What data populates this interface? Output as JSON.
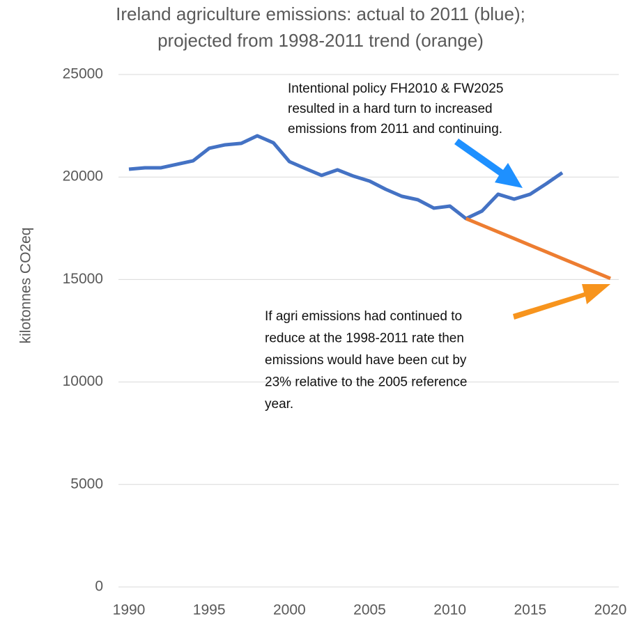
{
  "chart_data": {
    "type": "line",
    "title": [
      "Ireland agriculture emissions: actual to 2011 (blue);",
      "projected from 1998-2011 trend (orange)"
    ],
    "y_label": "kilotonnes CO2eq",
    "x": [
      1990,
      1991,
      1992,
      1993,
      1994,
      1995,
      1996,
      1997,
      1998,
      1999,
      2000,
      2001,
      2002,
      2003,
      2004,
      2005,
      2006,
      2007,
      2008,
      2009,
      2010,
      2011,
      2012,
      2013,
      2014,
      2015,
      2016,
      2017,
      2018,
      2019,
      2020
    ],
    "series": [
      {
        "name": "actual",
        "color": "#4472c4",
        "values": [
          20380,
          20450,
          20450,
          20620,
          20790,
          21400,
          21570,
          21640,
          22010,
          21670,
          20750,
          20410,
          20080,
          20350,
          20040,
          19800,
          19400,
          19060,
          18890,
          18480,
          18580,
          17970,
          18340,
          19160,
          18920,
          19160,
          19670,
          20210,
          null,
          null,
          null
        ]
      },
      {
        "name": "projected",
        "color": "#ed7d31",
        "values": [
          null,
          null,
          null,
          null,
          null,
          null,
          null,
          null,
          null,
          null,
          null,
          null,
          null,
          null,
          null,
          null,
          null,
          null,
          null,
          null,
          null,
          17970,
          17646,
          17321,
          16997,
          16672,
          16348,
          16023,
          15699,
          15374,
          15050
        ]
      }
    ],
    "xlim": [
      1990,
      2020
    ],
    "xticks": [
      1990,
      1995,
      2000,
      2005,
      2010,
      2015,
      2020
    ],
    "ylim": [
      0,
      25000
    ],
    "yticks": [
      0,
      5000,
      10000,
      15000,
      20000,
      25000
    ],
    "grid": true,
    "annotations": [
      {
        "lines": [
          "Intentional policy FH2010 & FW2025",
          "resulted in a hard turn to increased",
          "emissions from 2011 and continuing."
        ]
      },
      {
        "lines": [
          "If agri emissions had continued to",
          "reduce at the 1998-2011 rate then",
          "emissions would have been cut by",
          "23% relative to the 2005 reference",
          "year."
        ]
      }
    ]
  }
}
